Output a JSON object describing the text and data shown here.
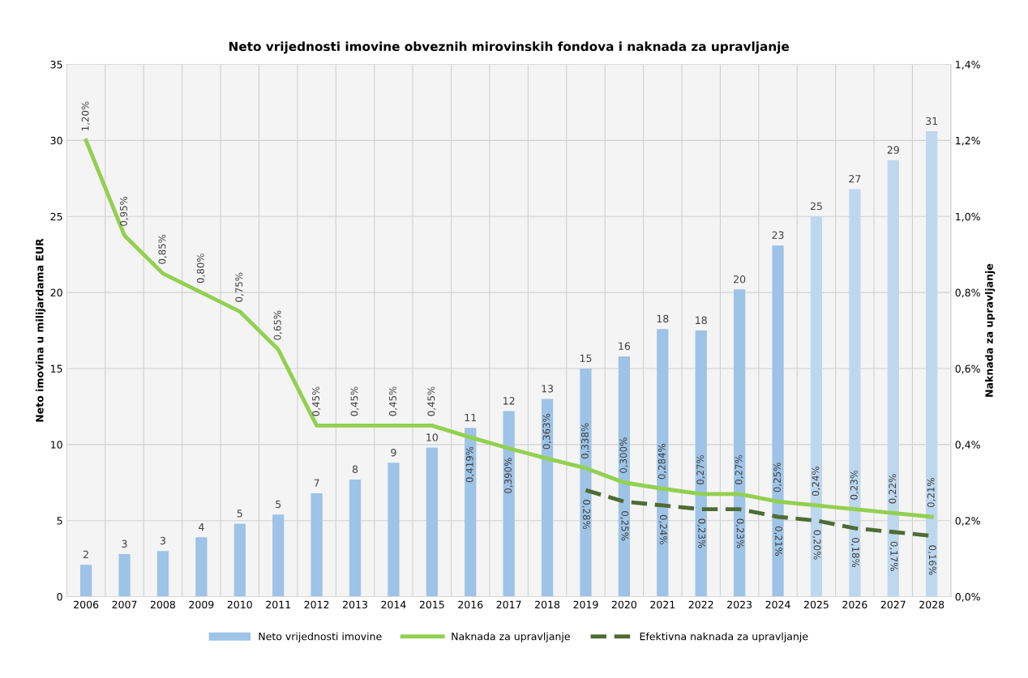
{
  "chart_data": {
    "type": "bar",
    "title": "Neto vrijednosti imovine obveznih mirovinskih fondova i naknada za upravljanje",
    "ylabel": "Neto imovina u milijardama EUR",
    "y2label": "Naknada za upravljanje",
    "categories": [
      "2006",
      "2007",
      "2008",
      "2009",
      "2010",
      "2011",
      "2012",
      "2013",
      "2014",
      "2015",
      "2016",
      "2017",
      "2018",
      "2019",
      "2020",
      "2021",
      "2022",
      "2023",
      "2024",
      "2025",
      "2026",
      "2027",
      "2028"
    ],
    "series": [
      {
        "name": "Neto vrijednosti imovine",
        "color": "#9dc3e6",
        "colors": [
          "#9dc3e6",
          "#9dc3e6",
          "#9dc3e6",
          "#9dc3e6",
          "#9dc3e6",
          "#9dc3e6",
          "#9dc3e6",
          "#9dc3e6",
          "#9dc3e6",
          "#9dc3e6",
          "#9dc3e6",
          "#9dc3e6",
          "#9dc3e6",
          "#9dc3e6",
          "#9dc3e6",
          "#9dc3e6",
          "#9dc3e6",
          "#9dc3e6",
          "#9dc3e6",
          "#bdd7ee",
          "#bdd7ee",
          "#bdd7ee",
          "#bdd7ee"
        ],
        "values": [
          2.1,
          2.8,
          3.0,
          3.9,
          4.8,
          5.4,
          6.8,
          7.7,
          8.8,
          9.8,
          11.1,
          12.2,
          13.0,
          15.0,
          15.8,
          17.6,
          17.5,
          20.2,
          23.1,
          25.0,
          26.8,
          28.7,
          30.6
        ],
        "value_labels": [
          "2",
          "3",
          "3",
          "4",
          "5",
          "5",
          "7",
          "8",
          "9",
          "10",
          "11",
          "12",
          "13",
          "15",
          "16",
          "18",
          "18",
          "20",
          "23",
          "25",
          "27",
          "29",
          "31"
        ]
      },
      {
        "name": "Naknada za upravljanje",
        "type": "line",
        "axis": "y2",
        "color": "#92d050",
        "line_style": "solid",
        "values": [
          1.2,
          0.95,
          0.85,
          0.8,
          0.75,
          0.65,
          0.45,
          0.45,
          0.45,
          0.45,
          0.419,
          0.39,
          0.363,
          0.338,
          0.3,
          0.284,
          0.27,
          0.27,
          0.25,
          0.24,
          0.23,
          0.22,
          0.21
        ],
        "value_labels": [
          "1,20%",
          "0,95%",
          "0,85%",
          "0,80%",
          "0,75%",
          "0,65%",
          "0,45%",
          "0,45%",
          "0,45%",
          "0,45%",
          "0,419%",
          "0,390%",
          "0,363%",
          "0,338%",
          "0,300%",
          "0,284%",
          "0,27%",
          "0,27%",
          "0,25%",
          "0,24%",
          "0,23%",
          "0,22%",
          "0,21%"
        ]
      },
      {
        "name": "Efektivna naknada za upravljanje",
        "type": "line",
        "axis": "y2",
        "color": "#4f6b35",
        "line_style": "dashed",
        "values": [
          null,
          null,
          null,
          null,
          null,
          null,
          null,
          null,
          null,
          null,
          null,
          null,
          null,
          0.28,
          0.25,
          0.24,
          0.23,
          0.23,
          0.21,
          0.2,
          0.18,
          0.17,
          0.16
        ],
        "value_labels": [
          null,
          null,
          null,
          null,
          null,
          null,
          null,
          null,
          null,
          null,
          null,
          null,
          null,
          "0,28%",
          "0,25%",
          "0,24%",
          "0,23%",
          "0,23%",
          "0,21%",
          "0,20%",
          "0,18%",
          "0,17%",
          "0,16%"
        ]
      }
    ],
    "ylim": [
      0,
      35
    ],
    "yticks": [
      0,
      5,
      10,
      15,
      20,
      25,
      30,
      35
    ],
    "y2lim": [
      0,
      1.4
    ],
    "y2ticks": [
      {
        "value": 0,
        "label": "0,0%"
      },
      {
        "value": 0.2,
        "label": "0,2%"
      },
      {
        "value": 0.4,
        "label": "0,4%"
      },
      {
        "value": 0.6,
        "label": "0,6%"
      },
      {
        "value": 0.8,
        "label": "0,8%"
      },
      {
        "value": 1.0,
        "label": "1,0%"
      },
      {
        "value": 1.2,
        "label": "1,2%"
      },
      {
        "value": 1.4,
        "label": "1,4%"
      }
    ],
    "grid": true,
    "legend": "bottom",
    "marker": "none"
  }
}
